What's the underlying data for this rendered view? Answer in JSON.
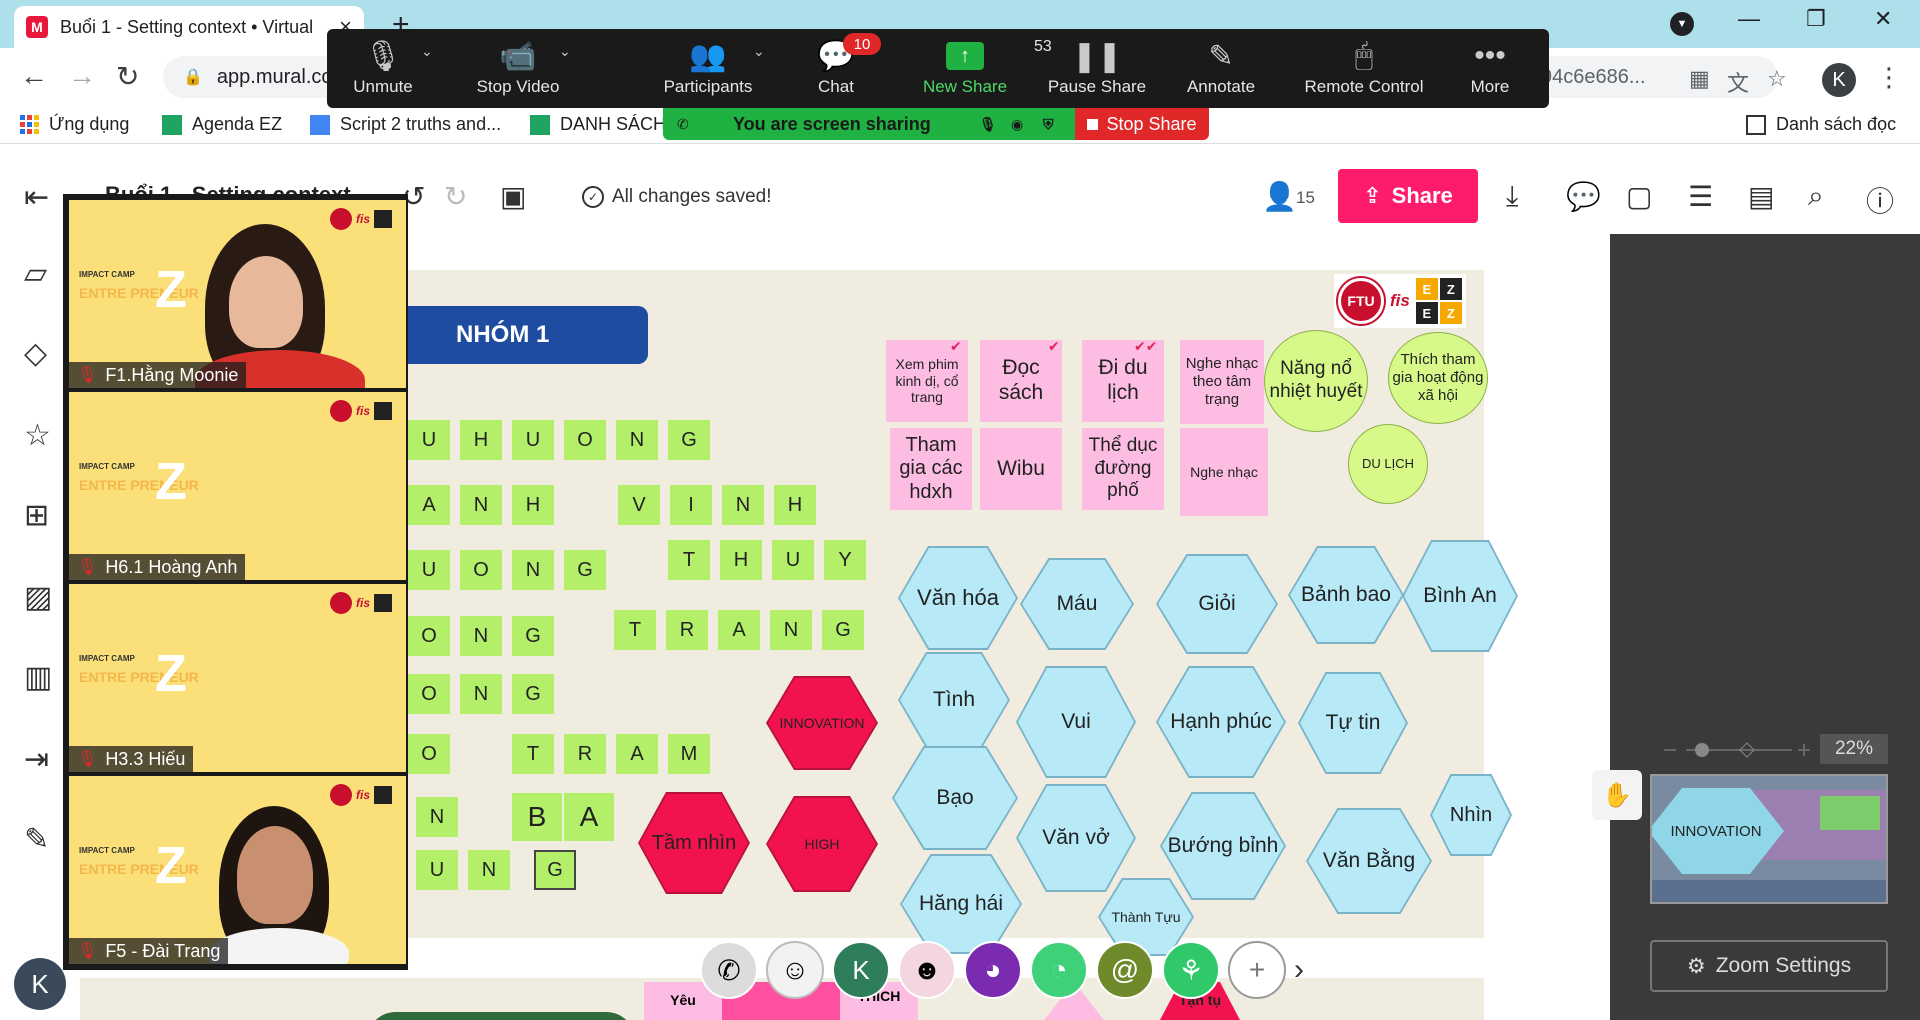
{
  "browser": {
    "tab_title": "Buổi 1 - Setting context • Virtual",
    "favicon_letter": "M",
    "url": "app.mural.co",
    "url_tail": "94c6e686...",
    "profile_initial": "K"
  },
  "bookmarks": [
    {
      "label": "Ứng dụng"
    },
    {
      "label": "Agenda EZ"
    },
    {
      "label": "Script 2 truths and..."
    },
    {
      "label": "DANH SÁCH"
    },
    {
      "label": "Danh sách đọc"
    }
  ],
  "zoom_toolbar": {
    "items": [
      {
        "label": "Unmute",
        "icon": "mic-muted-icon"
      },
      {
        "label": "Stop Video",
        "icon": "video-camera-icon"
      },
      {
        "label": "Participants",
        "icon": "participants-icon"
      },
      {
        "label": "Chat",
        "icon": "chat-icon"
      },
      {
        "label": "New Share",
        "icon": "new-share-icon"
      },
      {
        "label": "Pause Share",
        "icon": "pause-icon"
      },
      {
        "label": "Annotate",
        "icon": "pencil-icon"
      },
      {
        "label": "Remote Control",
        "icon": "mouse-icon"
      },
      {
        "label": "More",
        "icon": "more-icon"
      }
    ],
    "participants_count": "53",
    "chat_badge": "10",
    "sharing_text": "You are screen sharing",
    "stop_share_label": "Stop Share"
  },
  "mural_header": {
    "title": "Buổi 1 - Setting context",
    "saved_status": "All changes saved!",
    "member_count": "15",
    "share_label": "Share"
  },
  "board": {
    "group_title": "NHÓM 1",
    "letter_rows": [
      [
        "U",
        "H",
        "U",
        "O",
        "N",
        "G"
      ],
      [
        "A",
        "N",
        "H",
        "V",
        "I",
        "N",
        "H"
      ],
      [
        "T",
        "H",
        "U",
        "Y"
      ],
      [
        "U",
        "O",
        "N",
        "G"
      ],
      [
        "T",
        "R",
        "A",
        "N",
        "G"
      ],
      [
        "O",
        "N",
        "G"
      ],
      [
        "O",
        "N",
        "G"
      ],
      [
        "O",
        "T",
        "R",
        "A",
        "M"
      ],
      [
        "N",
        "B",
        "A"
      ],
      [
        "U",
        "N",
        "G"
      ]
    ],
    "pink_notes": [
      "Xem phim kinh dị, cổ trang",
      "Đọc sách",
      "Đi du lịch",
      "Nghe nhạc theo tâm trạng",
      "Tham gia các hdxh",
      "Wibu",
      "Thể dục đường phố",
      "Nghe nhạc"
    ],
    "circles": [
      "Năng nổ nhiệt huyết",
      "Thích tham gia hoạt động xã hội",
      "DU LỊCH"
    ],
    "blue_hexes": [
      "Văn hóa",
      "Máu",
      "Giỏi",
      "Bảnh bao",
      "Bình An",
      "Tình",
      "Vui",
      "Hạnh phúc",
      "Tự tin",
      "Bạo",
      "Văn vở",
      "Bướng bỉnh",
      "Văn Bằng",
      "Nhìn",
      "Hăng hái",
      "Thành Tựu"
    ],
    "red_hexes": [
      "INNOVATION",
      "Tầm nhìn",
      "HIGH"
    ],
    "logo": {
      "fis": "fis",
      "ez": [
        "E",
        "Z",
        "E",
        "Z"
      ]
    },
    "bottom_partial": [
      "Yêu",
      "THÍCH",
      "Tận tụ"
    ]
  },
  "right_panel": {
    "zoom_percent": "22%",
    "minimap_label": "INNOVATION",
    "zoom_settings_label": "Zoom Settings"
  },
  "gallery": [
    {
      "name": "F1.Hằng Moonie"
    },
    {
      "name": "H6.1 Hoàng Anh"
    },
    {
      "name": "H3.3 Hiếu"
    },
    {
      "name": "F5 - Đài Trang"
    }
  ],
  "gallery_bg": {
    "camp": "IMPACT CAMP",
    "entre": "ENTRE PRENEUR",
    "z": "Z",
    "fis": "fis"
  },
  "reactions": {
    "avatar_initial": "K"
  },
  "colors": {
    "green_tile": "#b4ef6a",
    "pink_note": "#fdbde3",
    "blue_hex": "#b7e9f7",
    "red_hex": "#f2134e",
    "share_button": "#ff1b6b",
    "zoom_bar": "#1a1a1a"
  }
}
